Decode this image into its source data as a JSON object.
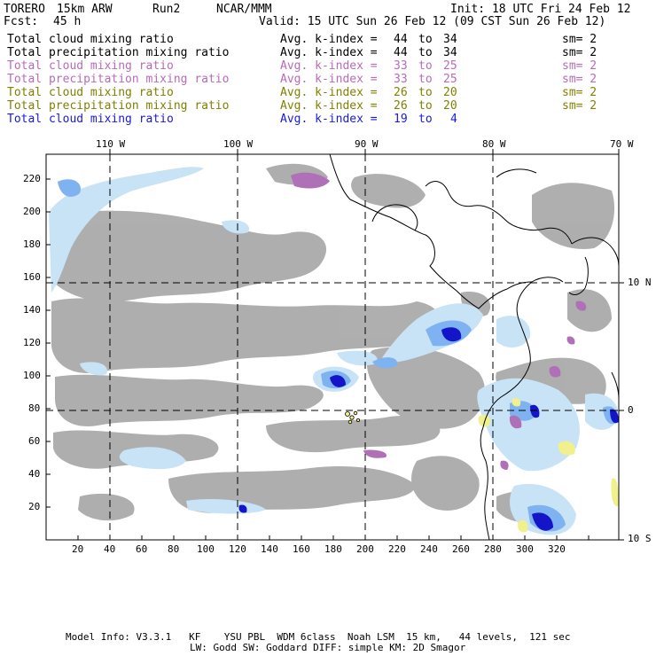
{
  "header": {
    "model": "TORERO",
    "resolution": "15km ARW",
    "run": "Run2",
    "org": "NCAR/MMM",
    "init": "Init: 18 UTC Fri 24 Feb 12",
    "fcst_label": "Fcst:",
    "fcst_value": "45 h",
    "valid": "Valid: 15 UTC Sun 26 Feb 12 (09 CST Sun 26 Feb 12)"
  },
  "legend": [
    {
      "field": "Total cloud mixing ratio",
      "kindex": "Avg. k-index =",
      "from": "44",
      "to_label": "to",
      "to": "34",
      "sm": "sm= 2",
      "color": "#000000"
    },
    {
      "field": "Total precipitation mixing ratio",
      "kindex": "Avg. k-index =",
      "from": "44",
      "to_label": "to",
      "to": "34",
      "sm": "sm= 2",
      "color": "#000000"
    },
    {
      "field": "Total cloud mixing ratio",
      "kindex": "Avg. k-index =",
      "from": "33",
      "to_label": "to",
      "to": "25",
      "sm": "sm= 2",
      "color": "#b86bb8"
    },
    {
      "field": "Total precipitation mixing ratio",
      "kindex": "Avg. k-index =",
      "from": "33",
      "to_label": "to",
      "to": "25",
      "sm": "sm= 2",
      "color": "#b86bb8"
    },
    {
      "field": "Total cloud mixing ratio",
      "kindex": "Avg. k-index =",
      "from": "26",
      "to_label": "to",
      "to": "20",
      "sm": "sm= 2",
      "color": "#808000"
    },
    {
      "field": "Total precipitation mixing ratio",
      "kindex": "Avg. k-index =",
      "from": "26",
      "to_label": "to",
      "to": "20",
      "sm": "sm= 2",
      "color": "#808000"
    },
    {
      "field": "Total cloud mixing ratio",
      "kindex": "Avg. k-index =",
      "from": "19",
      "to_label": "to",
      "to": "4",
      "sm": "",
      "color": "#1a1adc"
    }
  ],
  "axes": {
    "top_longitudes": [
      "110 W",
      "100 W",
      "90 W",
      "80 W",
      "70 W"
    ],
    "right_latitudes": [
      "10 N",
      "0",
      "10 S"
    ],
    "bottom_ticks": [
      "20",
      "40",
      "60",
      "80",
      "100",
      "120",
      "140",
      "160",
      "180",
      "200",
      "220",
      "240",
      "260",
      "280",
      "300",
      "320"
    ],
    "left_ticks": [
      "20",
      "40",
      "60",
      "80",
      "100",
      "120",
      "140",
      "160",
      "180",
      "200",
      "220"
    ]
  },
  "footer": {
    "line1": "Model Info: V3.3.1   KF    YSU PBL  WDM 6class  Noah LSM  15 km,   44 levels,  121 sec",
    "line2": "LW: Godd SW: Goddard DIFF: simple KM: 2D Smagor"
  },
  "colors": {
    "cloud_gray": "#a8a8a8",
    "light_blue": "#c8e2f6",
    "mid_blue": "#7fb2f0",
    "dark_blue": "#1414c8",
    "purple": "#b070b8",
    "yellow": "#f0f08c"
  }
}
